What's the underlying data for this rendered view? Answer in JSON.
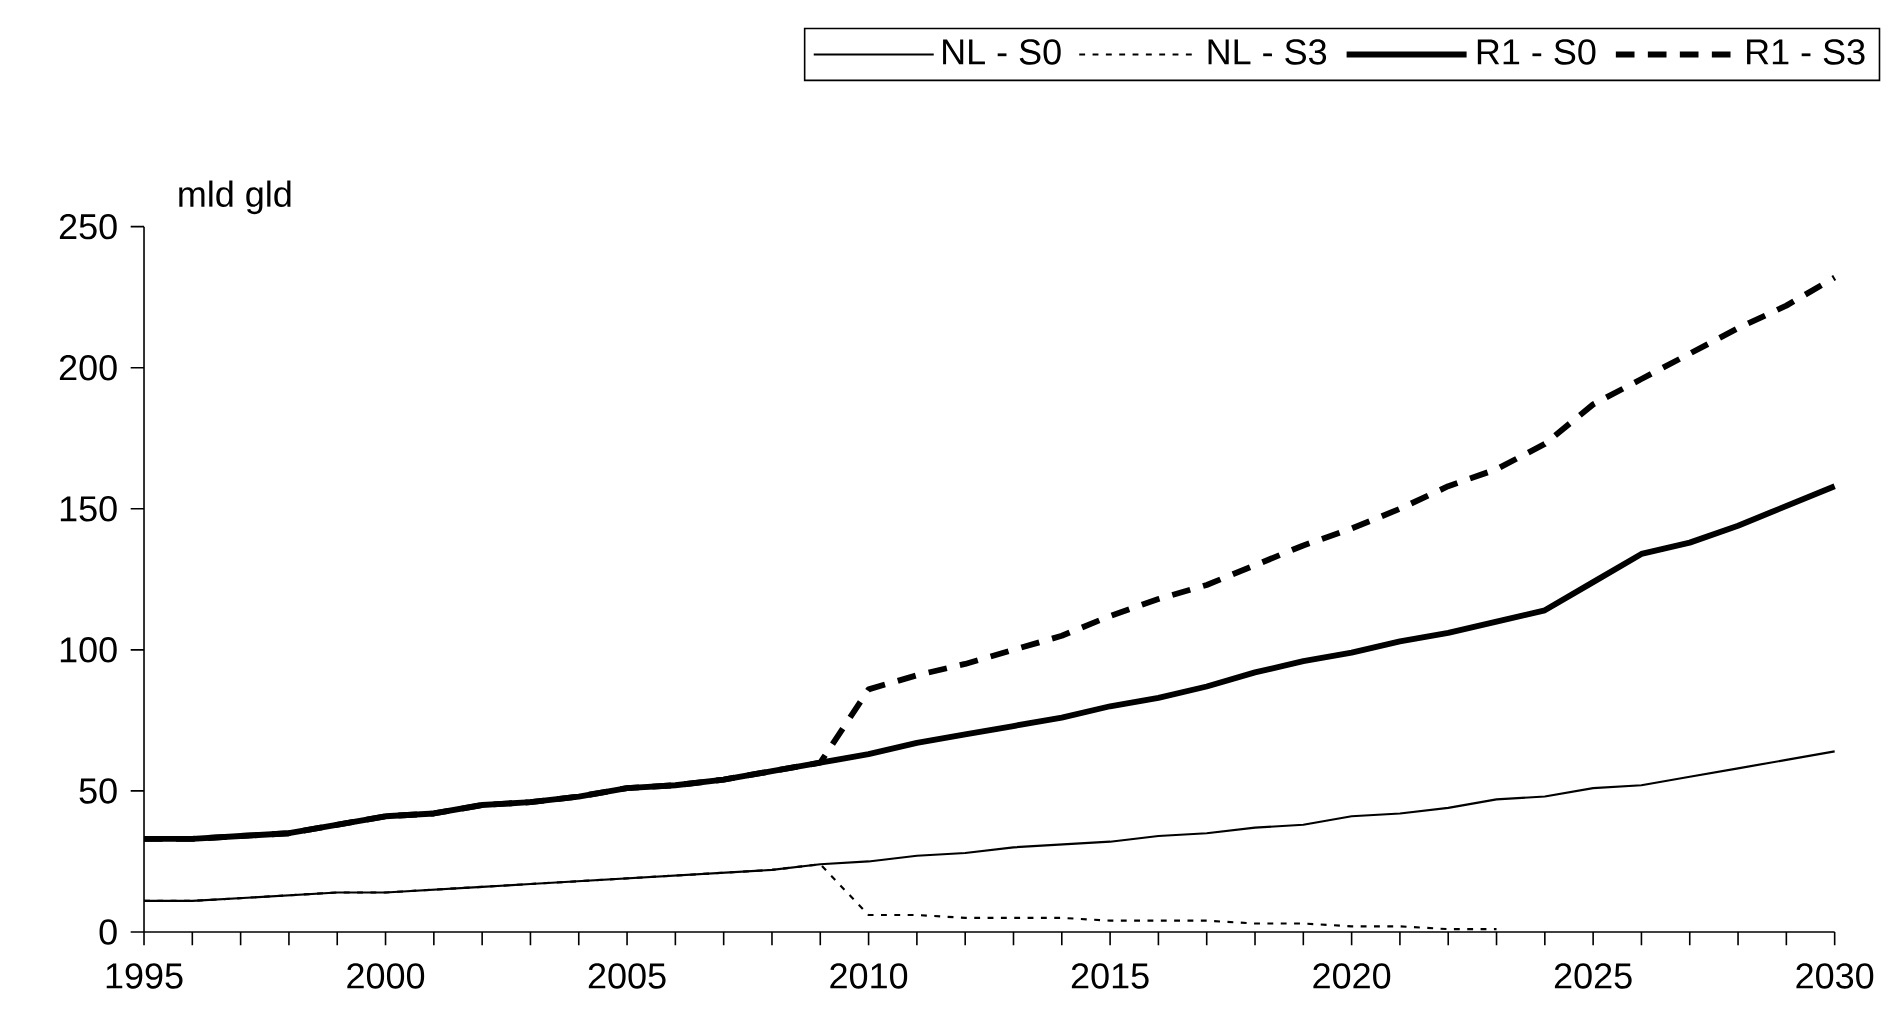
{
  "chart_data": {
    "type": "line",
    "ylabel": "mld gld",
    "x": [
      1995,
      1996,
      1997,
      1998,
      1999,
      2000,
      2001,
      2002,
      2003,
      2004,
      2005,
      2006,
      2007,
      2008,
      2009,
      2010,
      2011,
      2012,
      2013,
      2014,
      2015,
      2016,
      2017,
      2018,
      2019,
      2020,
      2021,
      2022,
      2023,
      2024,
      2025,
      2026,
      2027,
      2028,
      2029,
      2030
    ],
    "series": [
      {
        "name": "NL - S0",
        "color": "#000000",
        "line_style": "solid",
        "values": [
          11,
          11,
          12,
          13,
          14,
          14,
          15,
          16,
          17,
          18,
          19,
          20,
          21,
          22,
          24,
          25,
          27,
          28,
          30,
          31,
          32,
          34,
          35,
          37,
          38,
          41,
          42,
          44,
          47,
          48,
          51,
          52,
          55,
          58,
          61,
          64
        ]
      },
      {
        "name": "NL - S3",
        "color": "#000000",
        "line_style": "dotted",
        "values": [
          11,
          11,
          12,
          13,
          14,
          14,
          15,
          16,
          17,
          18,
          19,
          20,
          21,
          22,
          24,
          6,
          6,
          5,
          5,
          5,
          4,
          4,
          4,
          3,
          3,
          2,
          2,
          1,
          1,
          null,
          null,
          null,
          null,
          null,
          null,
          null
        ]
      },
      {
        "name": "R1 - S0",
        "color": "#000000",
        "line_style": "solid",
        "values": [
          33,
          33,
          34,
          35,
          38,
          41,
          42,
          45,
          46,
          48,
          51,
          52,
          54,
          57,
          60,
          63,
          67,
          70,
          73,
          76,
          80,
          83,
          87,
          92,
          96,
          99,
          103,
          106,
          110,
          114,
          124,
          134,
          138,
          144,
          151,
          158
        ]
      },
      {
        "name": "R1 - S3",
        "color": "#000000",
        "line_style": "dashed",
        "values": [
          33,
          33,
          34,
          35,
          38,
          41,
          42,
          45,
          46,
          48,
          51,
          52,
          54,
          57,
          60,
          86,
          91,
          95,
          100,
          105,
          112,
          118,
          123,
          130,
          137,
          143,
          150,
          158,
          164,
          173,
          187,
          196,
          205,
          214,
          222,
          232
        ]
      }
    ],
    "xlim": [
      1995,
      2030
    ],
    "xticks": [
      1995,
      {
        "value": 1996,
        "label": null
      },
      {
        "value": 1997,
        "label": null
      },
      {
        "value": 1998,
        "label": null
      },
      {
        "value": 1999,
        "label": null
      },
      2000,
      {
        "value": 2001,
        "label": null
      },
      {
        "value": 2002,
        "label": null
      },
      {
        "value": 2003,
        "label": null
      },
      {
        "value": 2004,
        "label": null
      },
      2005,
      {
        "value": 2006,
        "label": null
      },
      {
        "value": 2007,
        "label": null
      },
      {
        "value": 2008,
        "label": null
      },
      {
        "value": 2009,
        "label": null
      },
      2010,
      {
        "value": 2011,
        "label": null
      },
      {
        "value": 2012,
        "label": null
      },
      {
        "value": 2013,
        "label": null
      },
      {
        "value": 2014,
        "label": null
      },
      2015,
      {
        "value": 2016,
        "label": null
      },
      {
        "value": 2017,
        "label": null
      },
      {
        "value": 2018,
        "label": null
      },
      {
        "value": 2019,
        "label": null
      },
      2020,
      {
        "value": 2021,
        "label": null
      },
      {
        "value": 2022,
        "label": null
      },
      {
        "value": 2023,
        "label": null
      },
      {
        "value": 2024,
        "label": null
      },
      2025,
      {
        "value": 2026,
        "label": null
      },
      {
        "value": 2027,
        "label": null
      },
      {
        "value": 2028,
        "label": null
      },
      {
        "value": 2029,
        "label": null
      },
      2030
    ],
    "ylim": [
      0,
      250
    ],
    "yticks": [
      0,
      50,
      100,
      150,
      200,
      250
    ],
    "legend": "top",
    "marker": "none",
    "grid": false
  }
}
